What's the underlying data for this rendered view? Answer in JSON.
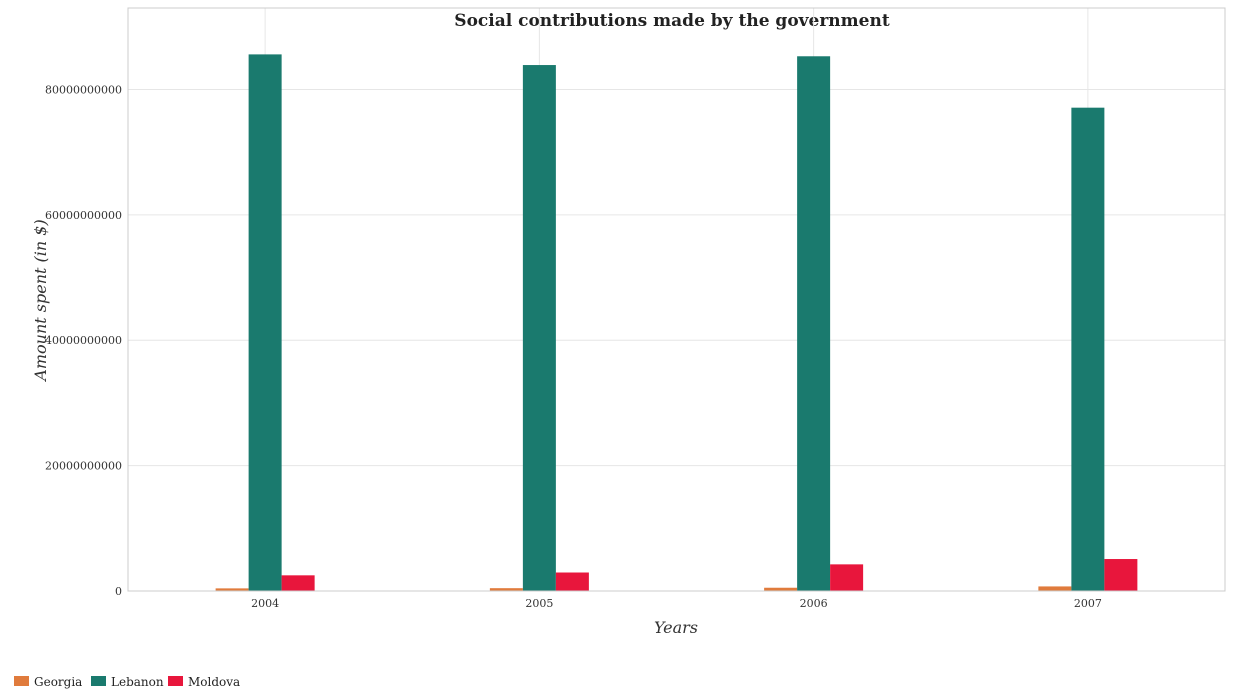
{
  "chart_data": {
    "type": "bar",
    "title": "Social contributions made by the government",
    "xlabel": "Years",
    "ylabel": "Amount spent (in $)",
    "categories": [
      "2004",
      "2005",
      "2006",
      "2007"
    ],
    "series": [
      {
        "name": "Georgia",
        "color": "#e07b3c",
        "values": [
          420000000,
          450000000,
          520000000,
          730000000
        ]
      },
      {
        "name": "Lebanon",
        "color": "#1a7a6e",
        "values": [
          85600000000,
          83900000000,
          85300000000,
          77100000000
        ]
      },
      {
        "name": "Moldova",
        "color": "#e8163c",
        "values": [
          2500000000,
          2950000000,
          4250000000,
          5100000000
        ]
      }
    ],
    "ylim": [
      0,
      93000000000
    ],
    "yticks": [
      0,
      20000000000,
      40000000000,
      60000000000,
      80000000000
    ],
    "ytick_labels": [
      "0",
      "20000000000",
      "40000000000",
      "60000000000",
      "80000000000"
    ],
    "grid": true,
    "legend_position": "bottom-left"
  }
}
